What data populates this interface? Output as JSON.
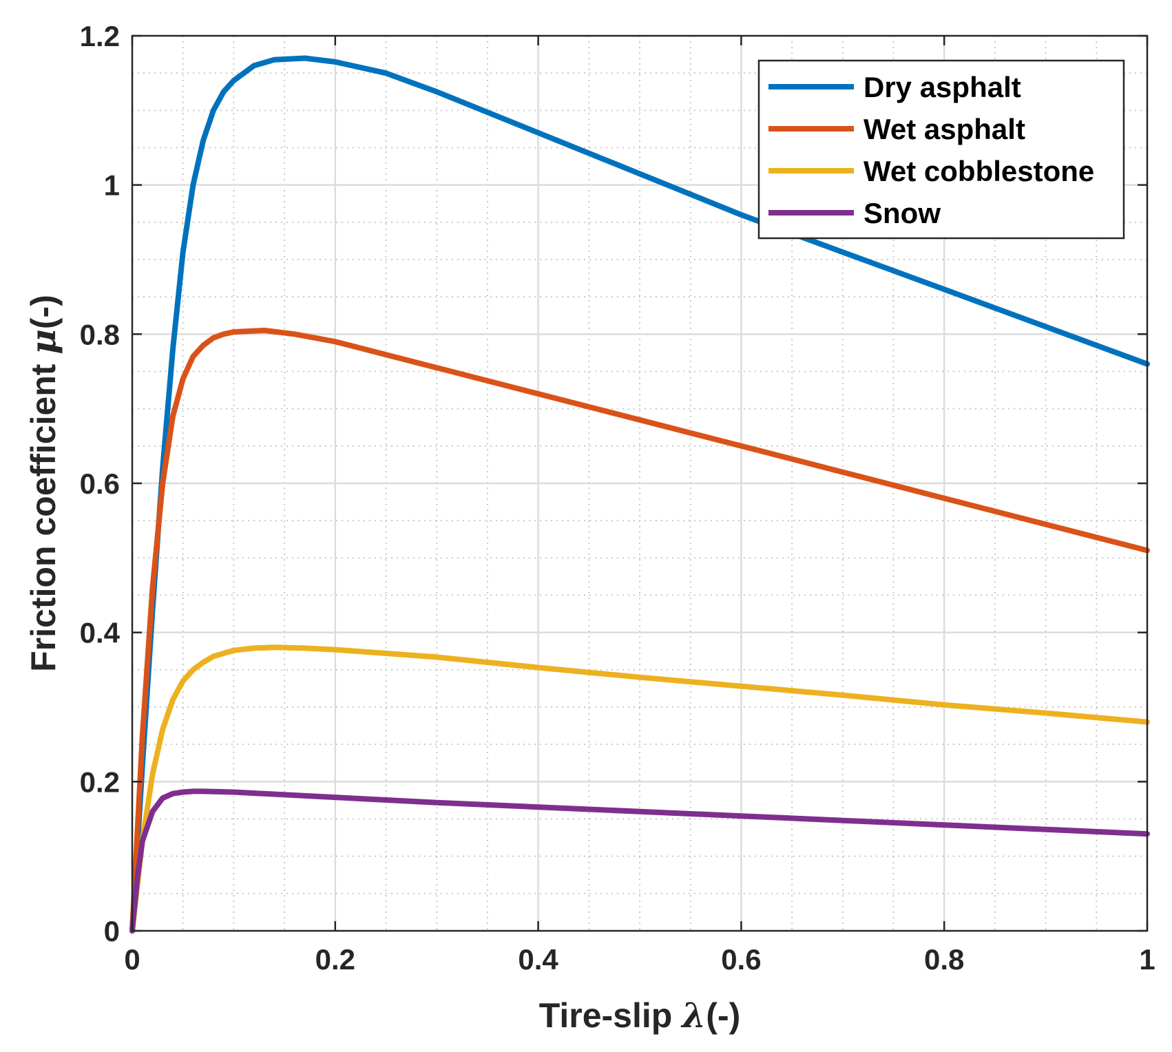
{
  "chart_data": {
    "type": "line",
    "title": "",
    "xlabel": "Tire-slip",
    "xlabel_symbol": "λ",
    "xlabel_unit": "(-)",
    "ylabel": "Friction coefficient",
    "ylabel_symbol": "μ",
    "ylabel_unit": "(-)",
    "xlim": [
      0,
      1
    ],
    "ylim": [
      0,
      1.2
    ],
    "xticks": [
      0,
      0.2,
      0.4,
      0.6,
      0.8,
      1
    ],
    "xtick_labels": [
      "0",
      "0.2",
      "0.4",
      "0.6",
      "0.8",
      "1"
    ],
    "yticks": [
      0,
      0.2,
      0.4,
      0.6,
      0.8,
      1,
      1.2
    ],
    "ytick_labels": [
      "0",
      "0.2",
      "0.4",
      "0.6",
      "0.8",
      "1",
      "1.2"
    ],
    "grid": true,
    "minor_grid": true,
    "legend_position": "top-right",
    "series": [
      {
        "name": "Dry asphalt",
        "color": "#0072BD",
        "x": [
          0,
          0.01,
          0.02,
          0.03,
          0.04,
          0.05,
          0.06,
          0.07,
          0.08,
          0.09,
          0.1,
          0.12,
          0.14,
          0.17,
          0.2,
          0.25,
          0.3,
          0.4,
          0.5,
          0.6,
          0.7,
          0.8,
          0.9,
          1.0
        ],
        "values": [
          0,
          0.22,
          0.43,
          0.62,
          0.78,
          0.91,
          1.0,
          1.06,
          1.1,
          1.125,
          1.14,
          1.16,
          1.168,
          1.17,
          1.165,
          1.15,
          1.125,
          1.07,
          1.015,
          0.96,
          0.91,
          0.86,
          0.81,
          0.76
        ]
      },
      {
        "name": "Wet asphalt",
        "color": "#D95319",
        "x": [
          0,
          0.01,
          0.02,
          0.03,
          0.04,
          0.05,
          0.06,
          0.07,
          0.08,
          0.09,
          0.1,
          0.13,
          0.16,
          0.2,
          0.3,
          0.4,
          0.5,
          0.6,
          0.7,
          0.8,
          0.9,
          1.0
        ],
        "values": [
          0,
          0.26,
          0.46,
          0.6,
          0.69,
          0.74,
          0.77,
          0.785,
          0.795,
          0.8,
          0.803,
          0.805,
          0.8,
          0.79,
          0.755,
          0.72,
          0.685,
          0.65,
          0.615,
          0.58,
          0.545,
          0.51
        ]
      },
      {
        "name": "Wet cobblestone",
        "color": "#EDB120",
        "x": [
          0,
          0.01,
          0.02,
          0.03,
          0.04,
          0.05,
          0.06,
          0.07,
          0.08,
          0.1,
          0.12,
          0.14,
          0.17,
          0.2,
          0.3,
          0.4,
          0.5,
          0.6,
          0.7,
          0.8,
          0.9,
          1.0
        ],
        "values": [
          0,
          0.12,
          0.21,
          0.27,
          0.31,
          0.335,
          0.35,
          0.36,
          0.368,
          0.376,
          0.379,
          0.38,
          0.379,
          0.377,
          0.367,
          0.353,
          0.34,
          0.328,
          0.316,
          0.303,
          0.292,
          0.28
        ]
      },
      {
        "name": "Snow",
        "color": "#7E2F8E",
        "x": [
          0,
          0.005,
          0.01,
          0.02,
          0.03,
          0.04,
          0.05,
          0.06,
          0.07,
          0.1,
          0.2,
          0.3,
          0.4,
          0.5,
          0.6,
          0.7,
          0.8,
          0.9,
          1.0
        ],
        "values": [
          0,
          0.07,
          0.12,
          0.16,
          0.178,
          0.184,
          0.186,
          0.187,
          0.187,
          0.186,
          0.179,
          0.172,
          0.166,
          0.16,
          0.154,
          0.148,
          0.142,
          0.136,
          0.13
        ]
      }
    ]
  }
}
